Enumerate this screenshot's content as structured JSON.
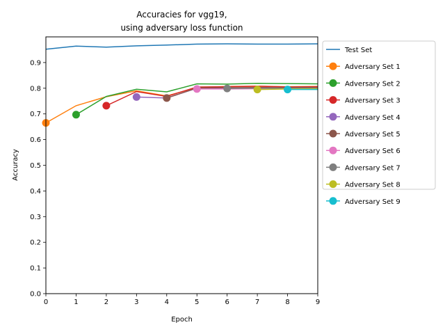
{
  "chart_data": {
    "type": "line",
    "title": [
      "Accuracies for vgg19,",
      "using adversary loss function"
    ],
    "xlabel": "Epoch",
    "ylabel": "Accuracy",
    "xlim": [
      0,
      9
    ],
    "ylim": [
      0,
      1.0
    ],
    "xticks": [
      "0",
      "1",
      "2",
      "3",
      "4",
      "5",
      "6",
      "7",
      "8",
      "9"
    ],
    "yticks": [
      "0.0",
      "0.1",
      "0.2",
      "0.3",
      "0.4",
      "0.5",
      "0.6",
      "0.7",
      "0.8",
      "0.9"
    ],
    "grid": false,
    "legend_position": "outside-upper-right",
    "series": [
      {
        "name": "Test Set",
        "color": "#1f77b4",
        "marker": false,
        "x": [
          0,
          1,
          2,
          3,
          4,
          5,
          6,
          7,
          8,
          9
        ],
        "y": [
          0.952,
          0.964,
          0.96,
          0.965,
          0.968,
          0.972,
          0.973,
          0.972,
          0.972,
          0.973
        ]
      },
      {
        "name": "Adversary Set 1",
        "color": "#ff7f0e",
        "marker": true,
        "x": [
          0,
          1,
          2,
          3,
          4,
          5,
          6,
          7,
          8,
          9
        ],
        "y": [
          0.665,
          0.732,
          0.767,
          0.79,
          0.77,
          0.803,
          0.807,
          0.808,
          0.806,
          0.807
        ]
      },
      {
        "name": "Adversary Set 2",
        "color": "#2ca02c",
        "marker": true,
        "x": [
          1,
          2,
          3,
          4,
          5,
          6,
          7,
          8,
          9
        ],
        "y": [
          0.697,
          0.768,
          0.796,
          0.786,
          0.817,
          0.816,
          0.819,
          0.818,
          0.817
        ]
      },
      {
        "name": "Adversary Set 3",
        "color": "#d62728",
        "marker": true,
        "x": [
          2,
          3,
          4,
          5,
          6,
          7,
          8,
          9
        ],
        "y": [
          0.732,
          0.787,
          0.768,
          0.805,
          0.806,
          0.808,
          0.805,
          0.806
        ]
      },
      {
        "name": "Adversary Set 4",
        "color": "#9467bd",
        "marker": true,
        "x": [
          3,
          4,
          5,
          6,
          7,
          8,
          9
        ],
        "y": [
          0.766,
          0.762,
          0.8,
          0.8,
          0.801,
          0.8,
          0.801
        ]
      },
      {
        "name": "Adversary Set 5",
        "color": "#8c564b",
        "marker": true,
        "x": [
          4,
          5,
          6,
          7,
          8,
          9
        ],
        "y": [
          0.762,
          0.801,
          0.802,
          0.803,
          0.802,
          0.803
        ]
      },
      {
        "name": "Adversary Set 6",
        "color": "#e377c2",
        "marker": true,
        "x": [
          5,
          6,
          7,
          8,
          9
        ],
        "y": [
          0.797,
          0.797,
          0.798,
          0.797,
          0.798
        ]
      },
      {
        "name": "Adversary Set 7",
        "color": "#7f7f7f",
        "marker": true,
        "x": [
          6,
          7,
          8,
          9
        ],
        "y": [
          0.799,
          0.8,
          0.8,
          0.8
        ]
      },
      {
        "name": "Adversary Set 8",
        "color": "#bcbd22",
        "marker": true,
        "x": [
          7,
          8,
          9
        ],
        "y": [
          0.795,
          0.797,
          0.798
        ]
      },
      {
        "name": "Adversary Set 9",
        "color": "#17becf",
        "marker": true,
        "x": [
          8,
          9
        ],
        "y": [
          0.795,
          0.795
        ]
      }
    ]
  }
}
